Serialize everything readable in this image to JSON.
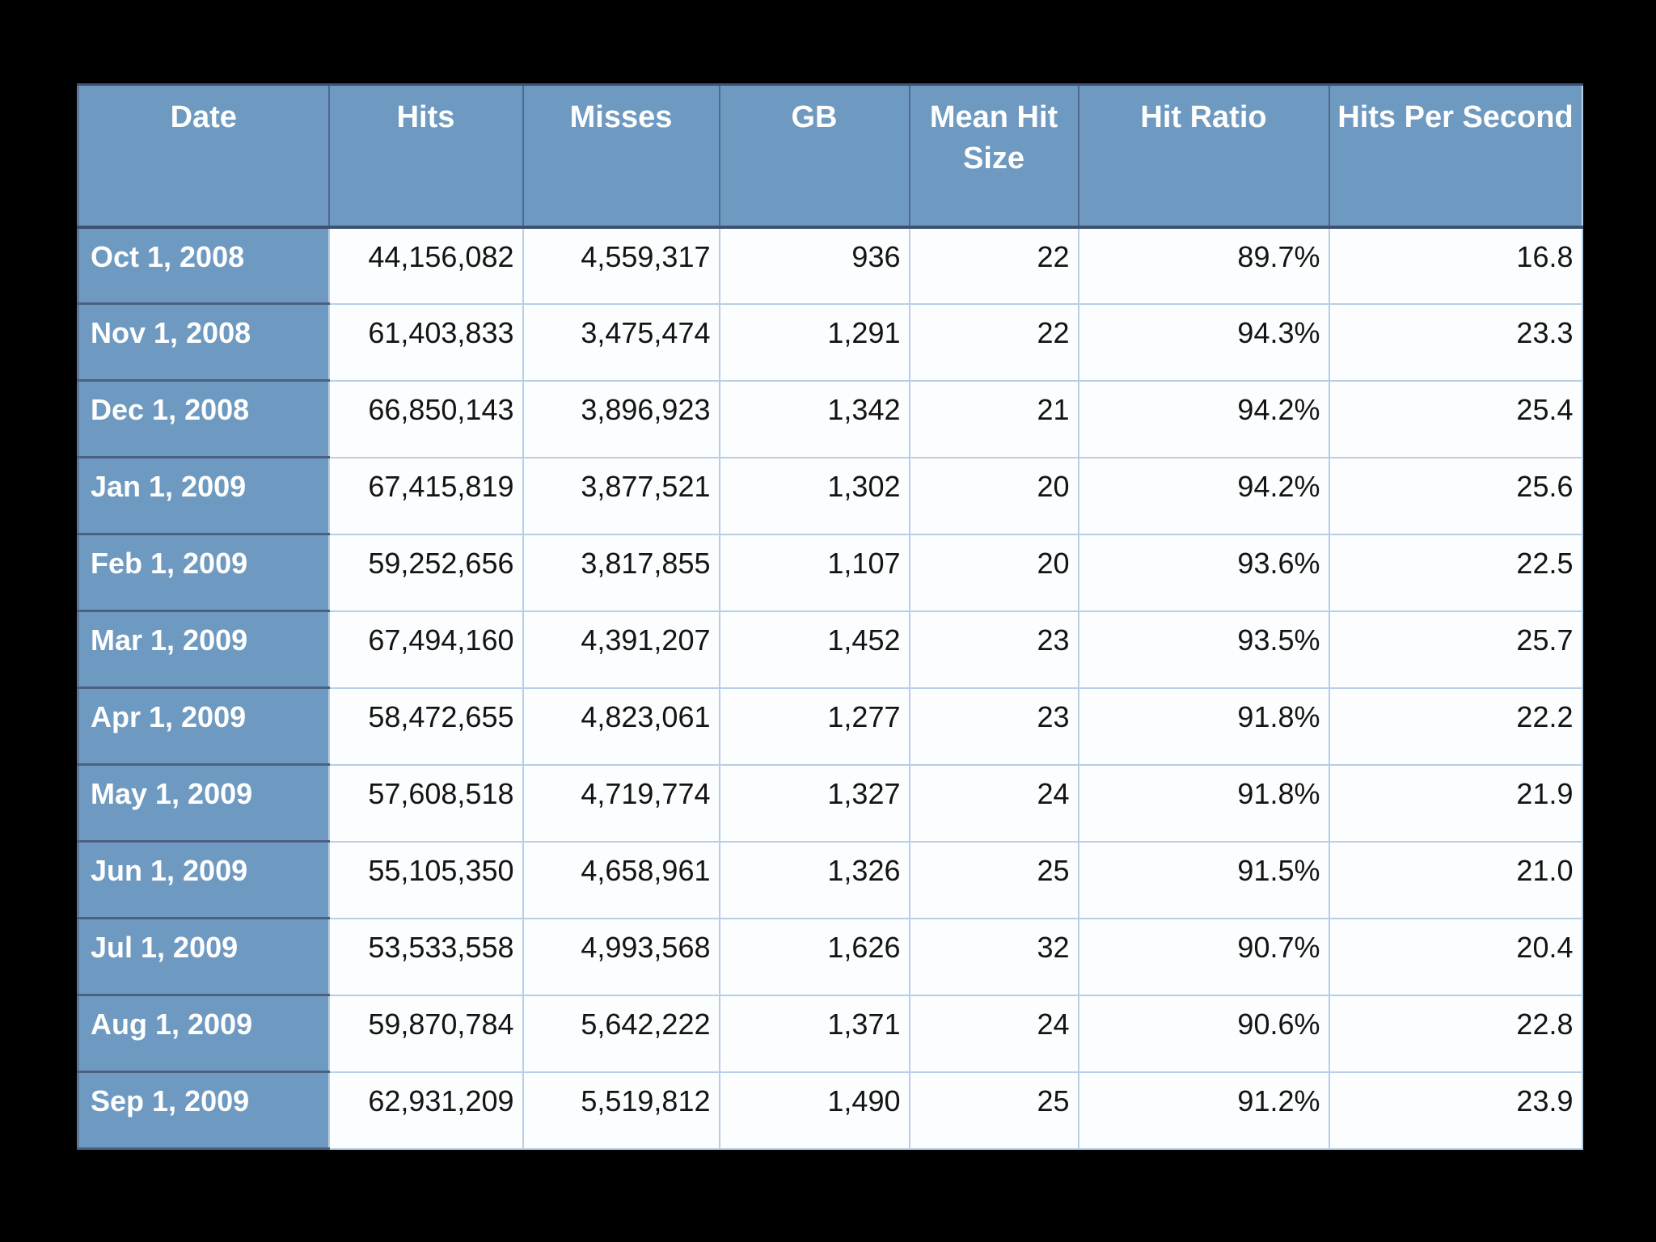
{
  "chart_data": {
    "type": "table",
    "columns": [
      {
        "key": "date",
        "label": "Date"
      },
      {
        "key": "hits",
        "label": "Hits"
      },
      {
        "key": "misses",
        "label": "Misses"
      },
      {
        "key": "gb",
        "label": "GB"
      },
      {
        "key": "mean_hit_size",
        "label": "Mean Hit Size"
      },
      {
        "key": "hit_ratio",
        "label": "Hit Ratio"
      },
      {
        "key": "hits_per_second",
        "label": "Hits Per Second"
      }
    ],
    "rows": [
      {
        "date": "Oct 1, 2008",
        "hits": "44,156,082",
        "misses": "4,559,317",
        "gb": "936",
        "mean_hit_size": "22",
        "hit_ratio": "89.7%",
        "hits_per_second": "16.8"
      },
      {
        "date": "Nov 1, 2008",
        "hits": "61,403,833",
        "misses": "3,475,474",
        "gb": "1,291",
        "mean_hit_size": "22",
        "hit_ratio": "94.3%",
        "hits_per_second": "23.3"
      },
      {
        "date": "Dec 1, 2008",
        "hits": "66,850,143",
        "misses": "3,896,923",
        "gb": "1,342",
        "mean_hit_size": "21",
        "hit_ratio": "94.2%",
        "hits_per_second": "25.4"
      },
      {
        "date": "Jan 1, 2009",
        "hits": "67,415,819",
        "misses": "3,877,521",
        "gb": "1,302",
        "mean_hit_size": "20",
        "hit_ratio": "94.2%",
        "hits_per_second": "25.6"
      },
      {
        "date": "Feb 1, 2009",
        "hits": "59,252,656",
        "misses": "3,817,855",
        "gb": "1,107",
        "mean_hit_size": "20",
        "hit_ratio": "93.6%",
        "hits_per_second": "22.5"
      },
      {
        "date": "Mar 1, 2009",
        "hits": "67,494,160",
        "misses": "4,391,207",
        "gb": "1,452",
        "mean_hit_size": "23",
        "hit_ratio": "93.5%",
        "hits_per_second": "25.7"
      },
      {
        "date": "Apr 1, 2009",
        "hits": "58,472,655",
        "misses": "4,823,061",
        "gb": "1,277",
        "mean_hit_size": "23",
        "hit_ratio": "91.8%",
        "hits_per_second": "22.2"
      },
      {
        "date": "May 1, 2009",
        "hits": "57,608,518",
        "misses": "4,719,774",
        "gb": "1,327",
        "mean_hit_size": "24",
        "hit_ratio": "91.8%",
        "hits_per_second": "21.9"
      },
      {
        "date": "Jun 1, 2009",
        "hits": "55,105,350",
        "misses": "4,658,961",
        "gb": "1,326",
        "mean_hit_size": "25",
        "hit_ratio": "91.5%",
        "hits_per_second": "21.0"
      },
      {
        "date": "Jul 1, 2009",
        "hits": "53,533,558",
        "misses": "4,993,568",
        "gb": "1,626",
        "mean_hit_size": "32",
        "hit_ratio": "90.7%",
        "hits_per_second": "20.4"
      },
      {
        "date": "Aug 1, 2009",
        "hits": "59,870,784",
        "misses": "5,642,222",
        "gb": "1,371",
        "mean_hit_size": "24",
        "hit_ratio": "90.6%",
        "hits_per_second": "22.8"
      },
      {
        "date": "Sep 1, 2009",
        "hits": "62,931,209",
        "misses": "5,519,812",
        "gb": "1,490",
        "mean_hit_size": "25",
        "hit_ratio": "91.2%",
        "hits_per_second": "23.9"
      }
    ],
    "layout_hints": {
      "header_position": "top",
      "date_column_style": "header-colored",
      "numeric_alignment": "right",
      "grid": "on"
    },
    "colors": {
      "page_bg": "#000000",
      "header_bg": "#6E99C0",
      "row_bg": "#FCFDFE",
      "grid_light": "#B7CFE6",
      "divider_dark": "#3F5173",
      "text_dark": "#141414",
      "text_light": "#FFFFFF"
    }
  }
}
